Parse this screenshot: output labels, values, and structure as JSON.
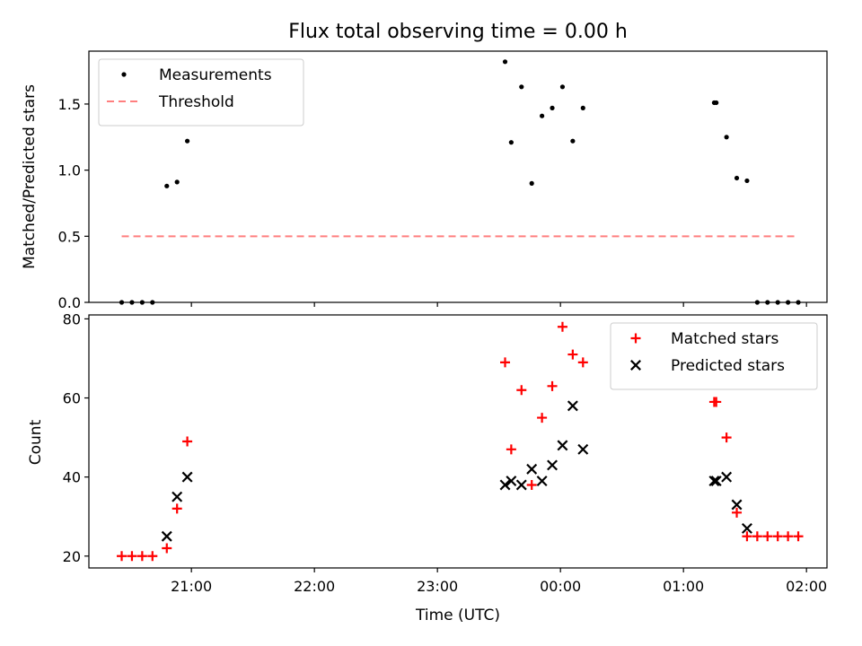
{
  "chart_data": [
    {
      "type": "scatter",
      "title": "Flux total observing time = 0.00 h",
      "xlabel": "",
      "ylabel": "Matched/Predicted stars",
      "xlim": [
        "20:10",
        "02:10"
      ],
      "ylim": [
        0,
        1.9
      ],
      "yticks": [
        "0.0",
        "0.5",
        "1.0",
        "1.5"
      ],
      "legend": {
        "location": "top-left"
      },
      "series": [
        {
          "name": "Measurements",
          "style": "dots",
          "color": "#000000",
          "x": [
            "20:26",
            "20:31",
            "20:36",
            "20:41",
            "20:48",
            "20:53",
            "20:58",
            "23:33",
            "23:36",
            "23:41",
            "23:46",
            "23:51",
            "23:56",
            "00:01",
            "00:06",
            "00:11",
            "01:15",
            "01:16",
            "01:21",
            "01:26",
            "01:31",
            "01:36",
            "01:41",
            "01:46",
            "01:51",
            "01:56"
          ],
          "y": [
            0,
            0,
            0,
            0,
            0.88,
            0.91,
            1.22,
            1.82,
            1.21,
            1.63,
            0.9,
            1.41,
            1.47,
            1.63,
            1.22,
            1.47,
            1.51,
            1.51,
            1.25,
            0.94,
            0.92,
            0,
            0,
            0,
            0,
            0
          ]
        },
        {
          "name": "Threshold",
          "style": "dashed-line",
          "color": "#ff7f7f",
          "x": [
            "20:26",
            "01:56"
          ],
          "y": [
            0.5,
            0.5
          ]
        }
      ]
    },
    {
      "type": "scatter",
      "xlabel": "Time (UTC)",
      "ylabel": "Count",
      "xlim": [
        "20:10",
        "02:10"
      ],
      "ylim": [
        17,
        81
      ],
      "yticks": [
        "20",
        "40",
        "60",
        "80"
      ],
      "xticks": [
        "21:00",
        "22:00",
        "23:00",
        "00:00",
        "01:00",
        "02:00"
      ],
      "legend": {
        "location": "top-right"
      },
      "series": [
        {
          "name": "Matched stars",
          "marker": "plus",
          "color": "#ff0000",
          "x": [
            "20:26",
            "20:31",
            "20:36",
            "20:41",
            "20:48",
            "20:53",
            "20:58",
            "23:33",
            "23:36",
            "23:41",
            "23:46",
            "23:51",
            "23:56",
            "00:01",
            "00:06",
            "00:11",
            "01:15",
            "01:16",
            "01:21",
            "01:26",
            "01:31",
            "01:36",
            "01:41",
            "01:46",
            "01:51",
            "01:56"
          ],
          "y": [
            20,
            20,
            20,
            20,
            22,
            32,
            49,
            69,
            47,
            62,
            38,
            55,
            63,
            78,
            71,
            69,
            59,
            59,
            50,
            31,
            25,
            25,
            25,
            25,
            25,
            25
          ]
        },
        {
          "name": "Predicted stars",
          "marker": "x",
          "color": "#000000",
          "x": [
            "20:48",
            "20:53",
            "20:58",
            "23:33",
            "23:36",
            "23:41",
            "23:46",
            "23:51",
            "23:56",
            "00:01",
            "00:06",
            "00:11",
            "01:15",
            "01:16",
            "01:21",
            "01:26",
            "01:31"
          ],
          "y": [
            25,
            35,
            40,
            38,
            39,
            38,
            42,
            39,
            43,
            48,
            58,
            47,
            39,
            39,
            40,
            33,
            27
          ]
        }
      ]
    }
  ]
}
